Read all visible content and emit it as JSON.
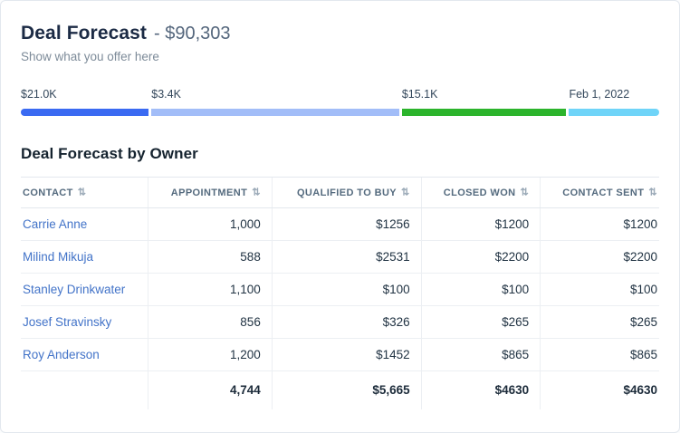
{
  "header": {
    "title": "Deal Forecast",
    "amount": "- $90,303",
    "subtitle": "Show what you offer here"
  },
  "forecast_bar": {
    "segments": [
      {
        "label": "$21.0K",
        "color": "#3a6af2",
        "width_pct": 20.3
      },
      {
        "label": "$3.4K",
        "color": "#a2bdf8",
        "width_pct": 39.3
      },
      {
        "label": "$15.1K",
        "color": "#2cb42c",
        "width_pct": 26.1
      },
      {
        "label": "Feb 1, 2022",
        "color": "#6fd4f8",
        "width_pct": 14.3
      }
    ]
  },
  "table": {
    "title": "Deal Forecast by Owner",
    "columns": [
      {
        "label": "CONTACT"
      },
      {
        "label": "APPOINTMENT"
      },
      {
        "label": "QUALIFIED TO BUY"
      },
      {
        "label": "CLOSED WON"
      },
      {
        "label": "CONTACT SENT"
      }
    ],
    "rows": [
      [
        "Carrie Anne",
        "1,000",
        "$1256",
        "$1200",
        "$1200"
      ],
      [
        "Milind Mikuja",
        "588",
        "$2531",
        "$2200",
        "$2200"
      ],
      [
        "Stanley Drinkwater",
        "1,100",
        "$100",
        "$100",
        "$100"
      ],
      [
        "Josef Stravinsky",
        "856",
        "$326",
        "$265",
        "$265"
      ],
      [
        "Roy Anderson",
        "1,200",
        "$1452",
        "$865",
        "$865"
      ]
    ],
    "totals": [
      "",
      "4,744",
      "$5,665",
      "$4630",
      "$4630"
    ]
  },
  "icons": {
    "sort": "⇅"
  },
  "colors": {
    "title": "#1c2b45",
    "subtitle": "#7d8b99",
    "link": "#4273c8",
    "bar_blue": "#3a6af2",
    "bar_light_blue": "#a2bdf8",
    "bar_green": "#2cb42c",
    "bar_sky": "#6fd4f8",
    "border": "#e3e8ee"
  }
}
